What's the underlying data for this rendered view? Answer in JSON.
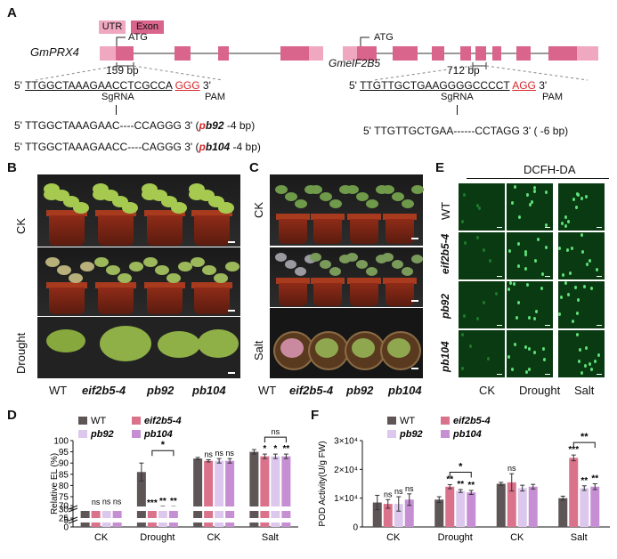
{
  "panelA": {
    "letter": "A",
    "gene1": "GmPRX4",
    "gene2": "GmeIF2B5",
    "legend_utr": "UTR",
    "legend_exon": "Exon",
    "atg": "ATG",
    "bp1": "159 bp",
    "bp2": "712 bp",
    "seq1_prefix": "5'",
    "seq1_main": "TTGGCTAAAGAACCTCGCCA",
    "seq1_pam": "GGG",
    "seq1_suffix": "3'",
    "sgrna": "SgRNA",
    "pam": "PAM",
    "mut1": "5' TTGGCTAAAGAAC----CCAGGG 3' (",
    "mut1_p": "p",
    "mut1_b": "b92",
    "mut1_del": " -4 bp)",
    "mut2": "5' TTGGCTAAAGAACC----CAGGG 3' (",
    "mut2_p": "p",
    "mut2_b": "b104",
    "mut2_del": " -4 bp)",
    "seq2_prefix": "5'",
    "seq2_main": "TTGTTGCTGAAGGGGCCCCT",
    "seq2_pam": "AGG",
    "seq2_suffix": "3'",
    "mut3": "5' TTGTTGCTGAA------CCTAGG  3' ( -6 bp)"
  },
  "panelB": {
    "letter": "B",
    "row1": "CK",
    "row3": "Drought"
  },
  "panelC": {
    "letter": "C",
    "row1": "CK",
    "row3": "Salt"
  },
  "panelE": {
    "letter": "E",
    "header": "DCFH-DA",
    "rows": [
      "WT",
      "eif2b5-4",
      "pb92",
      "pb104"
    ],
    "cols": [
      "CK",
      "Drought",
      "Salt"
    ]
  },
  "genotypes_BC": [
    "WT",
    "eif2b5-4",
    "pb92",
    "pb104"
  ],
  "colors": {
    "WT": "#5e5557",
    "eif2b5-4": "#d9728a",
    "pb92": "#dcc8ec",
    "pb104": "#c78fd3",
    "exon": "#d9648c",
    "utr": "#f0a8c0"
  },
  "chart_data": [
    {
      "type": "bar",
      "panel": "D",
      "ylabel": "Relative EL (%)",
      "yticks": [
        "0",
        "5",
        "25",
        "30",
        "70",
        "75",
        "80",
        "85",
        "90",
        "95",
        "100"
      ],
      "categories": [
        "CK",
        "Drought",
        "CK",
        "Salt"
      ],
      "legend": [
        "WT",
        "eif2b5-4",
        "pb92",
        "pb104"
      ],
      "series": [
        {
          "name": "WT",
          "values": [
            50,
            86,
            92,
            95
          ]
        },
        {
          "name": "eif2b5-4",
          "values": [
            47,
            38,
            91,
            93
          ]
        },
        {
          "name": "pb92",
          "values": [
            51,
            57,
            91,
            93
          ]
        },
        {
          "name": "pb104",
          "values": [
            51,
            54,
            91,
            93
          ]
        }
      ],
      "errors": [
        {
          "name": "WT",
          "values": [
            4,
            4,
            0.5,
            1
          ]
        },
        {
          "name": "eif2b5-4",
          "values": [
            4,
            3,
            0.5,
            1
          ]
        },
        {
          "name": "pb92",
          "values": [
            4,
            4,
            1,
            1
          ]
        },
        {
          "name": "pb104",
          "values": [
            5,
            5,
            1,
            1
          ]
        }
      ],
      "annotations": [
        [
          "",
          "ns",
          "ns",
          "ns"
        ],
        [
          "",
          "***",
          "**",
          "**"
        ],
        [
          "",
          "ns",
          "ns",
          "ns"
        ],
        [
          "",
          "*",
          "*",
          "**"
        ]
      ],
      "brackets": [
        {
          "group": 1,
          "label": "*"
        },
        {
          "group": 3,
          "label": "ns"
        }
      ]
    },
    {
      "type": "bar",
      "panel": "F",
      "ylabel": "POD Activity(U/g FW)",
      "yticks": [
        "0",
        "1×10⁴",
        "2×10⁴",
        "3×10⁴"
      ],
      "ylim": [
        0,
        30000
      ],
      "categories": [
        "CK",
        "Drought",
        "CK",
        "Salt"
      ],
      "legend": [
        "WT",
        "eif2b5-4",
        "pb92",
        "pb104"
      ],
      "series": [
        {
          "name": "WT",
          "values": [
            8500,
            9500,
            15000,
            10000
          ]
        },
        {
          "name": "eif2b5-4",
          "values": [
            8000,
            14000,
            15500,
            24000
          ]
        },
        {
          "name": "pb92",
          "values": [
            8000,
            12500,
            13500,
            13500
          ]
        },
        {
          "name": "pb104",
          "values": [
            9500,
            12000,
            14000,
            14000
          ]
        }
      ],
      "errors": [
        {
          "name": "WT",
          "values": [
            2500,
            1000,
            500,
            700
          ]
        },
        {
          "name": "eif2b5-4",
          "values": [
            1500,
            700,
            3000,
            1000
          ]
        },
        {
          "name": "pb92",
          "values": [
            2500,
            500,
            1000,
            800
          ]
        },
        {
          "name": "pb104",
          "values": [
            2000,
            700,
            800,
            1000
          ]
        }
      ],
      "annotations": [
        [
          "",
          "ns",
          "ns",
          "ns"
        ],
        [
          "",
          "**",
          "**",
          "**"
        ],
        [
          "",
          "ns",
          "",
          ""
        ],
        [
          "",
          "***",
          "**",
          "**"
        ]
      ],
      "brackets": [
        {
          "group": 1,
          "label": "*"
        },
        {
          "group": 3,
          "label": "**"
        }
      ]
    }
  ]
}
